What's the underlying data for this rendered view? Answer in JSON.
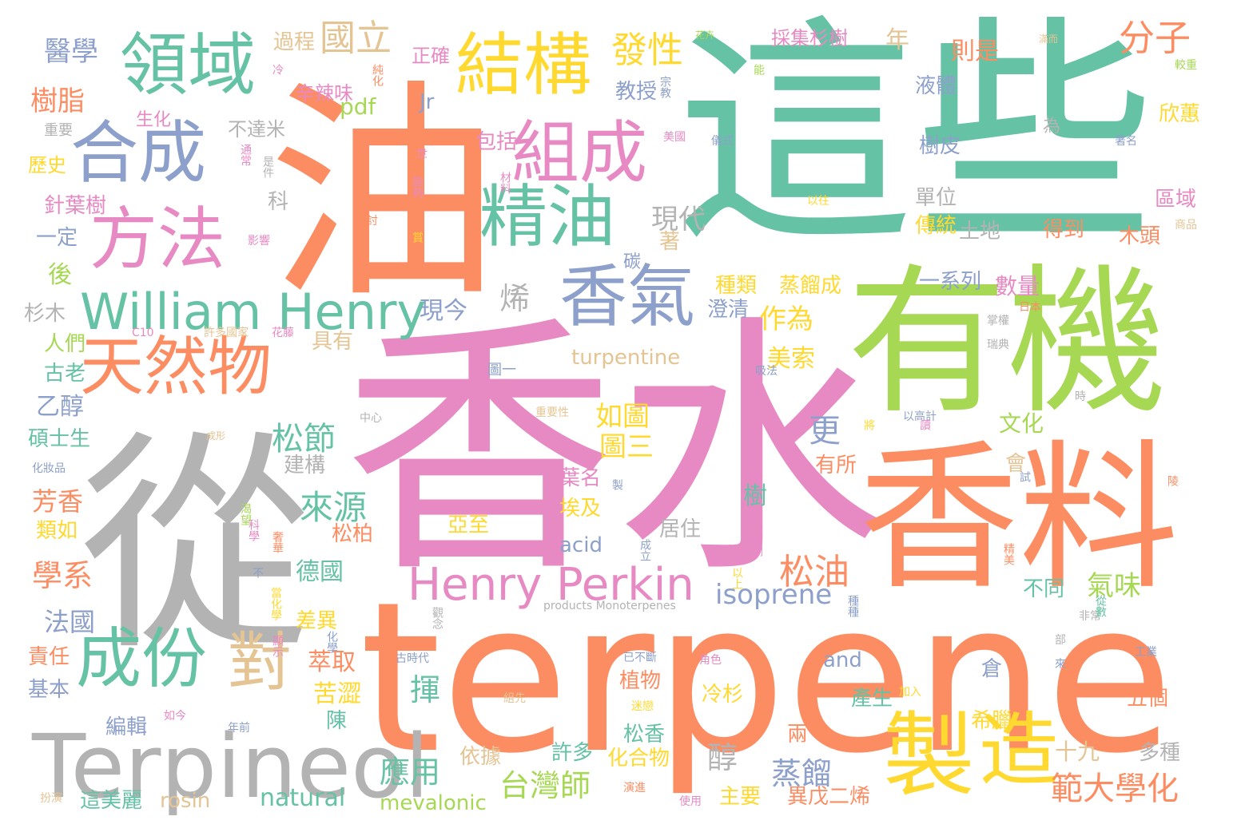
{
  "word_cloud": {
    "palette": {
      "teal": "#66c2a5",
      "orange": "#fc8d62",
      "blue": "#8da0cb",
      "pink": "#e78ac3",
      "green": "#a6d854",
      "yellow": "#ffd92f",
      "tan": "#e5c494",
      "gray": "#b3b3b3"
    },
    "words": [
      {
        "text": "這些",
        "color": "#66c2a5"
      },
      {
        "text": "香水",
        "color": "#e78ac3"
      },
      {
        "text": "terpene",
        "color": "#fc8d62"
      },
      {
        "text": "從",
        "color": "#b3b3b3"
      },
      {
        "text": "油",
        "color": "#fc8d62"
      },
      {
        "text": "有機",
        "color": "#a6d854"
      },
      {
        "text": "香料",
        "color": "#fc8d62"
      },
      {
        "text": "Terpineol",
        "color": "#b3b3b3"
      },
      {
        "text": "製",
        "color": "#ffd92f"
      },
      {
        "text": "造",
        "color": "#ffd92f"
      },
      {
        "text": "結構",
        "color": "#ffd92f"
      },
      {
        "text": "組成",
        "color": "#e78ac3"
      },
      {
        "text": "領域",
        "color": "#66c2a5"
      },
      {
        "text": "合成",
        "color": "#8da0cb"
      },
      {
        "text": "方法",
        "color": "#e78ac3"
      },
      {
        "text": "天然物",
        "color": "#fc8d62"
      },
      {
        "text": "精油",
        "color": "#66c2a5"
      },
      {
        "text": "香氣",
        "color": "#8da0cb"
      },
      {
        "text": "成份",
        "color": "#66c2a5"
      },
      {
        "text": "對",
        "color": "#e5c494"
      },
      {
        "text": "William Henry",
        "color": "#66c2a5"
      },
      {
        "text": "Henry Perkin",
        "color": "#e78ac3"
      },
      {
        "text": "國立",
        "color": "#e5c494"
      },
      {
        "text": "發性",
        "color": "#ffd92f"
      },
      {
        "text": "分子",
        "color": "#fc8d62"
      },
      {
        "text": "醫學",
        "color": "#8da0cb"
      },
      {
        "text": "樹脂",
        "color": "#fc8d62"
      },
      {
        "text": "過程",
        "color": "#e5c494"
      },
      {
        "text": "正確",
        "color": "#e78ac3"
      },
      {
        "text": "採集杉樹",
        "color": "#e78ac3"
      },
      {
        "text": "則是",
        "color": "#fc8d62"
      },
      {
        "text": "年",
        "color": "#e5c494"
      },
      {
        "text": "花卉",
        "color": "#a6d854"
      },
      {
        "text": "滿而",
        "color": "#e5c494"
      },
      {
        "text": "辛辣味",
        "color": "#e78ac3"
      },
      {
        "text": "Jr",
        "color": "#8da0cb"
      },
      {
        "text": "pdf",
        "color": "#a6d854"
      },
      {
        "text": "教授",
        "color": "#8da0cb"
      },
      {
        "text": "液體",
        "color": "#8da0cb"
      },
      {
        "text": "欣蕙",
        "color": "#ffd92f"
      },
      {
        "text": "較重",
        "color": "#a6d854"
      },
      {
        "text": "生化",
        "color": "#e78ac3"
      },
      {
        "text": "不達米",
        "color": "#b3b3b3"
      },
      {
        "text": "包括",
        "color": "#e78ac3"
      },
      {
        "text": "樹皮",
        "color": "#8da0cb"
      },
      {
        "text": "為",
        "color": "#b3b3b3"
      },
      {
        "text": "重要",
        "color": "#b3b3b3"
      },
      {
        "text": "歷史",
        "color": "#ffd92f"
      },
      {
        "text": "美國",
        "color": "#e78ac3"
      },
      {
        "text": "儀式",
        "color": "#8da0cb"
      },
      {
        "text": "著名",
        "color": "#8da0cb"
      },
      {
        "text": "單位",
        "color": "#b3b3b3"
      },
      {
        "text": "以往",
        "color": "#ffd92f"
      },
      {
        "text": "區域",
        "color": "#e78ac3"
      },
      {
        "text": "針葉樹",
        "color": "#e78ac3"
      },
      {
        "text": "科",
        "color": "#b3b3b3"
      },
      {
        "text": "現代",
        "color": "#b3b3b3"
      },
      {
        "text": "傳統",
        "color": "#ffd92f"
      },
      {
        "text": "土地",
        "color": "#b3b3b3"
      },
      {
        "text": "得到",
        "color": "#fc8d62"
      },
      {
        "text": "木頭",
        "color": "#fc8d62"
      },
      {
        "text": "商品",
        "color": "#e5c494"
      },
      {
        "text": "一定",
        "color": "#8da0cb"
      },
      {
        "text": "影響",
        "color": "#e78ac3"
      },
      {
        "text": "探討",
        "color": "#fc8d62"
      },
      {
        "text": "著",
        "color": "#e5c494"
      },
      {
        "text": "碳",
        "color": "#8da0cb"
      },
      {
        "text": "後",
        "color": "#a6d854"
      },
      {
        "text": "烯",
        "color": "#b3b3b3"
      },
      {
        "text": "種類",
        "color": "#ffd92f"
      },
      {
        "text": "蒸餾成",
        "color": "#ffd92f"
      },
      {
        "text": "一系列",
        "color": "#8da0cb"
      },
      {
        "text": "數量",
        "color": "#e78ac3"
      },
      {
        "text": "日本",
        "color": "#fc8d62"
      },
      {
        "text": "杉木",
        "color": "#b3b3b3"
      },
      {
        "text": "現今",
        "color": "#8da0cb"
      },
      {
        "text": "作為",
        "color": "#ffd92f"
      },
      {
        "text": "澄清",
        "color": "#8da0cb"
      },
      {
        "text": "C10",
        "color": "#e78ac3"
      },
      {
        "text": "許多國家",
        "color": "#e5c494"
      },
      {
        "text": "花藤",
        "color": "#e78ac3"
      },
      {
        "text": "人們",
        "color": "#a6d854"
      },
      {
        "text": "具有",
        "color": "#e5c494"
      },
      {
        "text": "美索",
        "color": "#ffd92f"
      },
      {
        "text": "turpentine",
        "color": "#e5c494"
      },
      {
        "text": "瑞典",
        "color": "#b3b3b3"
      },
      {
        "text": "掌權",
        "color": "#b3b3b3"
      },
      {
        "text": "古老",
        "color": "#66c2a5"
      },
      {
        "text": "圖一",
        "color": "#8da0cb"
      },
      {
        "text": "吸法",
        "color": "#8da0cb"
      },
      {
        "text": "乙醇",
        "color": "#8da0cb"
      },
      {
        "text": "如圖",
        "color": "#ffd92f"
      },
      {
        "text": "以高計",
        "color": "#8da0cb"
      },
      {
        "text": "時",
        "color": "#b3b3b3"
      },
      {
        "text": "碩士生",
        "color": "#66c2a5"
      },
      {
        "text": "中心",
        "color": "#b3b3b3"
      },
      {
        "text": "重要性",
        "color": "#e5c494"
      },
      {
        "text": "更",
        "color": "#8da0cb"
      },
      {
        "text": "文化",
        "color": "#a6d854"
      },
      {
        "text": "松節",
        "color": "#66c2a5"
      },
      {
        "text": "圖三",
        "color": "#ffd92f"
      },
      {
        "text": "建構",
        "color": "#b3b3b3"
      },
      {
        "text": "成形",
        "color": "#e5c494"
      },
      {
        "text": "化妝品",
        "color": "#8da0cb"
      },
      {
        "text": "會",
        "color": "#e5c494"
      },
      {
        "text": "有所",
        "color": "#fc8d62"
      },
      {
        "text": "來源",
        "color": "#66c2a5"
      },
      {
        "text": "葉名",
        "color": "#e78ac3"
      },
      {
        "text": "芳香",
        "color": "#fc8d62"
      },
      {
        "text": "樹",
        "color": "#66c2a5"
      },
      {
        "text": "類如",
        "color": "#ffd92f"
      },
      {
        "text": "埃及",
        "color": "#ffd92f"
      },
      {
        "text": "亞至",
        "color": "#ffd92f"
      },
      {
        "text": "居住",
        "color": "#b3b3b3"
      },
      {
        "text": "松柏",
        "color": "#fc8d62"
      },
      {
        "text": "acid",
        "color": "#8da0cb"
      },
      {
        "text": "學系",
        "color": "#fc8d62"
      },
      {
        "text": "德國",
        "color": "#66c2a5"
      },
      {
        "text": "松油",
        "color": "#fc8d62"
      },
      {
        "text": "isoprene",
        "color": "#8da0cb"
      },
      {
        "text": "氣味",
        "color": "#a6d854"
      },
      {
        "text": "不同",
        "color": "#66c2a5"
      },
      {
        "text": "法國",
        "color": "#8da0cb"
      },
      {
        "text": "差異",
        "color": "#ffd92f"
      },
      {
        "text": "products Monoterpenes",
        "color": "#b3b3b3"
      },
      {
        "text": "非常",
        "color": "#b3b3b3"
      },
      {
        "text": "責任",
        "color": "#fc8d62"
      },
      {
        "text": "萃取",
        "color": "#fc8d62"
      },
      {
        "text": "and",
        "color": "#8da0cb"
      },
      {
        "text": "倉",
        "color": "#8da0cb"
      },
      {
        "text": "工業",
        "color": "#8da0cb"
      },
      {
        "text": "基本",
        "color": "#8da0cb"
      },
      {
        "text": "揮",
        "color": "#66c2a5"
      },
      {
        "text": "植物",
        "color": "#fc8d62"
      },
      {
        "text": "冷杉",
        "color": "#ffd92f"
      },
      {
        "text": "產生",
        "color": "#66c2a5"
      },
      {
        "text": "五個",
        "color": "#fc8d62"
      },
      {
        "text": "苦澀",
        "color": "#ffd92f"
      },
      {
        "text": "陳",
        "color": "#66c2a5"
      },
      {
        "text": "希臘",
        "color": "#ffd92f"
      },
      {
        "text": "編輯",
        "color": "#8da0cb"
      },
      {
        "text": "松香",
        "color": "#66c2a5"
      },
      {
        "text": "兩",
        "color": "#fc8d62"
      },
      {
        "text": "十九",
        "color": "#e5c494"
      },
      {
        "text": "醇",
        "color": "#b3b3b3"
      },
      {
        "text": "應用",
        "color": "#66c2a5"
      },
      {
        "text": "依據",
        "color": "#e5c494"
      },
      {
        "text": "許多",
        "color": "#66c2a5"
      },
      {
        "text": "化合物",
        "color": "#ffd92f"
      },
      {
        "text": "多種",
        "color": "#b3b3b3"
      },
      {
        "text": "台灣師",
        "color": "#a6d854"
      },
      {
        "text": "蒸餾",
        "color": "#8da0cb"
      },
      {
        "text": "範大學化",
        "color": "#fc8d62"
      },
      {
        "text": "natural",
        "color": "#66c2a5"
      },
      {
        "text": "主要",
        "color": "#ffd92f"
      },
      {
        "text": "異戊二烯",
        "color": "#fc8d62"
      },
      {
        "text": "這美麗",
        "color": "#66c2a5"
      },
      {
        "text": "rosin",
        "color": "#e5c494"
      },
      {
        "text": "mevalonic",
        "color": "#a6d854"
      },
      {
        "text": "使用",
        "color": "#e78ac3"
      },
      {
        "text": "扮演",
        "color": "#e5c494"
      },
      {
        "text": "如今",
        "color": "#e78ac3"
      },
      {
        "text": "年前",
        "color": "#8da0cb"
      },
      {
        "text": "組先",
        "color": "#e5c494"
      },
      {
        "text": "迷戀",
        "color": "#ffd92f"
      },
      {
        "text": "加入",
        "color": "#ffd92f"
      },
      {
        "text": "角色",
        "color": "#e78ac3"
      },
      {
        "text": "已不斷",
        "color": "#8da0cb"
      },
      {
        "text": "古時代",
        "color": "#8da0cb"
      },
      {
        "text": "部",
        "color": "#b3b3b3"
      },
      {
        "text": "來",
        "color": "#8da0cb"
      },
      {
        "text": "演進",
        "color": "#fc8d62"
      },
      {
        "text": "冷",
        "color": "#e78ac3"
      },
      {
        "text": "純化",
        "color": "#fc8d62"
      },
      {
        "text": "宗教",
        "color": "#8da0cb"
      },
      {
        "text": "通常",
        "color": "#e78ac3"
      },
      {
        "text": "是件",
        "color": "#b3b3b3"
      },
      {
        "text": "世",
        "color": "#e78ac3"
      },
      {
        "text": "能夠",
        "color": "#e78ac3"
      },
      {
        "text": "材料",
        "color": "#e78ac3"
      },
      {
        "text": "賞",
        "color": "#ffd92f"
      },
      {
        "text": "將",
        "color": "#ffd92f"
      },
      {
        "text": "讀",
        "color": "#e78ac3"
      },
      {
        "text": "試",
        "color": "#8da0cb"
      },
      {
        "text": "製",
        "color": "#8da0cb"
      },
      {
        "text": "渴望",
        "color": "#a6d854"
      },
      {
        "text": "科學",
        "color": "#e78ac3"
      },
      {
        "text": "奢華",
        "color": "#fc8d62"
      },
      {
        "text": "成立",
        "color": "#8da0cb"
      },
      {
        "text": "殺菌劑",
        "color": "#e78ac3"
      },
      {
        "text": "精美",
        "color": "#fc8d62"
      },
      {
        "text": "以上",
        "color": "#ffd92f"
      },
      {
        "text": "不",
        "color": "#8da0cb"
      },
      {
        "text": "當化學",
        "color": "#ffd92f"
      },
      {
        "text": "種種",
        "color": "#8da0cb"
      },
      {
        "text": "從數",
        "color": "#66c2a5"
      },
      {
        "text": "觀念",
        "color": "#b3b3b3"
      },
      {
        "text": "顯示",
        "color": "#e78ac3"
      },
      {
        "text": "化學",
        "color": "#8da0cb"
      },
      {
        "text": "陵",
        "color": "#fc8d62"
      },
      {
        "text": "能",
        "color": "#a6d854"
      }
    ]
  }
}
